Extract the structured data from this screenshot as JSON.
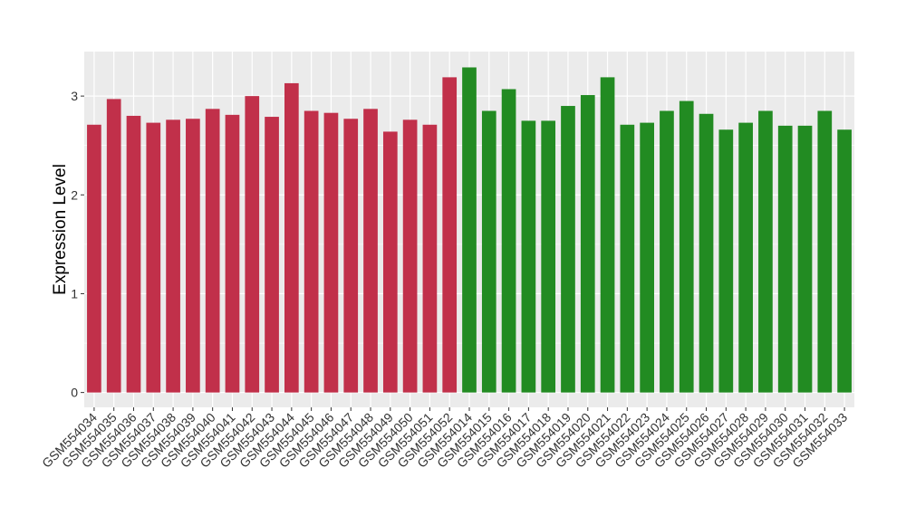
{
  "chart_data": {
    "type": "bar",
    "title": "",
    "xlabel": "",
    "ylabel": "Expression Level",
    "ylim": [
      -0.15,
      3.45
    ],
    "yticks": [
      0,
      1,
      2,
      3
    ],
    "grid": true,
    "legend": "none",
    "colors": {
      "group1": "#c1304a",
      "group2": "#228b22",
      "panel_bg": "#ebebeb",
      "gridline": "#ffffff"
    },
    "categories": [
      "GSM554034",
      "GSM554035",
      "GSM554036",
      "GSM554037",
      "GSM554038",
      "GSM554039",
      "GSM554040",
      "GSM554041",
      "GSM554042",
      "GSM554043",
      "GSM554044",
      "GSM554045",
      "GSM554046",
      "GSM554047",
      "GSM554048",
      "GSM554049",
      "GSM554050",
      "GSM554051",
      "GSM554052",
      "GSM554014",
      "GSM554015",
      "GSM554016",
      "GSM554017",
      "GSM554018",
      "GSM554019",
      "GSM554020",
      "GSM554021",
      "GSM554022",
      "GSM554023",
      "GSM554024",
      "GSM554025",
      "GSM554026",
      "GSM554027",
      "GSM554028",
      "GSM554029",
      "GSM554030",
      "GSM554031",
      "GSM554032",
      "GSM554033"
    ],
    "values": [
      2.71,
      2.97,
      2.8,
      2.73,
      2.76,
      2.77,
      2.87,
      2.81,
      3.0,
      2.79,
      3.13,
      2.85,
      2.83,
      2.77,
      2.87,
      2.64,
      2.76,
      2.71,
      3.19,
      3.29,
      2.85,
      3.07,
      2.75,
      2.75,
      2.9,
      3.01,
      3.19,
      2.71,
      2.73,
      2.85,
      2.95,
      2.82,
      2.66,
      2.73,
      2.85,
      2.7,
      2.7,
      2.85,
      2.66
    ],
    "groups": [
      1,
      1,
      1,
      1,
      1,
      1,
      1,
      1,
      1,
      1,
      1,
      1,
      1,
      1,
      1,
      1,
      1,
      1,
      1,
      2,
      2,
      2,
      2,
      2,
      2,
      2,
      2,
      2,
      2,
      2,
      2,
      2,
      2,
      2,
      2,
      2,
      2,
      2,
      2
    ]
  }
}
